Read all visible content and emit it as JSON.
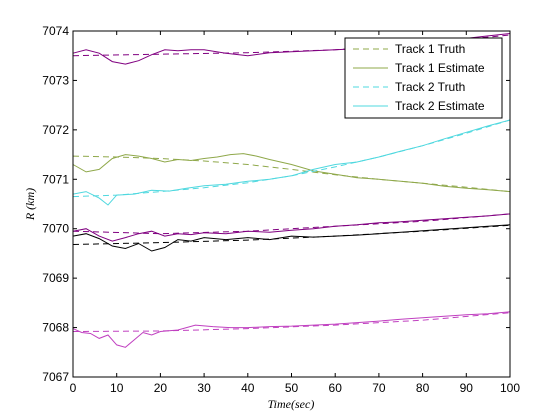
{
  "chart_data": {
    "type": "line",
    "title": "",
    "xlabel": "Time(sec)",
    "ylabel": "R (km)",
    "xlim": [
      0,
      100
    ],
    "ylim": [
      7067,
      7074
    ],
    "xticks": [
      0,
      10,
      20,
      30,
      40,
      50,
      60,
      70,
      80,
      90,
      100
    ],
    "yticks": [
      7067,
      7068,
      7069,
      7070,
      7071,
      7072,
      7073,
      7074
    ],
    "grid": false,
    "legend_position": "top-right",
    "legend": [
      {
        "label": "Track 1 Truth",
        "color": "#8fa84a",
        "dash": true
      },
      {
        "label": "Track 1 Estimate",
        "color": "#8fa84a",
        "dash": false
      },
      {
        "label": "Track 2 Truth",
        "color": "#4fd8df",
        "dash": true
      },
      {
        "label": "Track 2 Estimate",
        "color": "#4fd8df",
        "dash": false
      }
    ],
    "series": [
      {
        "name": "Track 1 Truth",
        "color": "#8fa84a",
        "dash": true,
        "x": [
          0,
          10,
          20,
          30,
          40,
          50,
          60,
          70,
          80,
          90,
          100
        ],
        "y": [
          7071.47,
          7071.45,
          7071.42,
          7071.37,
          7071.3,
          7071.2,
          7071.09,
          7071.0,
          7070.92,
          7070.84,
          7070.75
        ]
      },
      {
        "name": "Track 1 Estimate",
        "color": "#8fa84a",
        "dash": false,
        "x": [
          0,
          3,
          6,
          9,
          12,
          15,
          18,
          21,
          24,
          27,
          30,
          33,
          36,
          39,
          42,
          45,
          50,
          55,
          60,
          65,
          70,
          75,
          80,
          85,
          90,
          95,
          100
        ],
        "y": [
          7071.3,
          7071.15,
          7071.2,
          7071.42,
          7071.5,
          7071.47,
          7071.42,
          7071.35,
          7071.4,
          7071.38,
          7071.42,
          7071.45,
          7071.5,
          7071.52,
          7071.47,
          7071.4,
          7071.3,
          7071.17,
          7071.1,
          7071.03,
          7071.0,
          7070.96,
          7070.92,
          7070.86,
          7070.82,
          7070.79,
          7070.75
        ]
      },
      {
        "name": "Track 2 Truth",
        "color": "#4fd8df",
        "dash": true,
        "x": [
          0,
          10,
          20,
          30,
          40,
          50,
          60,
          70,
          80,
          90,
          100
        ],
        "y": [
          7070.65,
          7070.68,
          7070.75,
          7070.83,
          7070.93,
          7071.07,
          7071.25,
          7071.45,
          7071.68,
          7071.93,
          7072.2
        ]
      },
      {
        "name": "Track 2 Estimate",
        "color": "#4fd8df",
        "dash": false,
        "x": [
          0,
          3,
          6,
          8,
          10,
          14,
          18,
          22,
          26,
          30,
          35,
          40,
          45,
          50,
          55,
          60,
          65,
          70,
          75,
          80,
          85,
          90,
          95,
          100
        ],
        "y": [
          7070.7,
          7070.75,
          7070.62,
          7070.48,
          7070.68,
          7070.7,
          7070.78,
          7070.76,
          7070.82,
          7070.87,
          7070.9,
          7070.96,
          7071.0,
          7071.07,
          7071.2,
          7071.3,
          7071.35,
          7071.45,
          7071.57,
          7071.68,
          7071.82,
          7071.95,
          7072.08,
          7072.2
        ]
      },
      {
        "color": "#800080",
        "dash": true,
        "x": [
          0,
          20,
          40,
          60,
          80,
          100
        ],
        "y": [
          7073.5,
          7073.53,
          7073.56,
          7073.62,
          7073.75,
          7073.92
        ]
      },
      {
        "color": "#800080",
        "dash": false,
        "x": [
          0,
          3,
          6,
          9,
          12,
          15,
          18,
          21,
          24,
          27,
          30,
          35,
          40,
          45,
          50,
          55,
          60,
          65,
          70,
          75,
          80,
          85,
          90,
          95,
          100
        ],
        "y": [
          7073.55,
          7073.62,
          7073.55,
          7073.38,
          7073.33,
          7073.4,
          7073.52,
          7073.62,
          7073.6,
          7073.62,
          7073.62,
          7073.55,
          7073.5,
          7073.56,
          7073.58,
          7073.6,
          7073.62,
          7073.64,
          7073.7,
          7073.72,
          7073.76,
          7073.8,
          7073.85,
          7073.9,
          7073.95
        ]
      },
      {
        "color": "#800080",
        "dash": true,
        "x": [
          0,
          20,
          40,
          60,
          80,
          100
        ],
        "y": [
          7069.95,
          7069.9,
          7069.95,
          7070.05,
          7070.15,
          7070.3
        ]
      },
      {
        "color": "#800080",
        "dash": false,
        "x": [
          0,
          3,
          6,
          9,
          12,
          15,
          18,
          21,
          24,
          27,
          30,
          35,
          40,
          45,
          50,
          55,
          60,
          65,
          70,
          75,
          80,
          85,
          90,
          95,
          100
        ],
        "y": [
          7069.95,
          7070.0,
          7069.85,
          7069.75,
          7069.82,
          7069.9,
          7069.95,
          7069.85,
          7069.9,
          7069.88,
          7069.92,
          7069.9,
          7069.95,
          7069.93,
          7069.97,
          7070.0,
          7070.05,
          7070.08,
          7070.12,
          7070.14,
          7070.17,
          7070.2,
          7070.23,
          7070.26,
          7070.3
        ]
      },
      {
        "color": "#000000",
        "dash": true,
        "x": [
          0,
          20,
          40,
          60,
          80,
          100
        ],
        "y": [
          7069.68,
          7069.72,
          7069.77,
          7069.85,
          7069.95,
          7070.07
        ]
      },
      {
        "color": "#000000",
        "dash": false,
        "x": [
          0,
          3,
          6,
          9,
          12,
          15,
          18,
          21,
          24,
          27,
          30,
          35,
          40,
          45,
          50,
          55,
          60,
          65,
          70,
          75,
          80,
          85,
          90,
          95,
          100
        ],
        "y": [
          7069.85,
          7069.9,
          7069.8,
          7069.65,
          7069.6,
          7069.7,
          7069.55,
          7069.62,
          7069.78,
          7069.75,
          7069.82,
          7069.78,
          7069.82,
          7069.78,
          7069.85,
          7069.83,
          7069.85,
          7069.87,
          7069.9,
          7069.93,
          7069.96,
          7069.99,
          7070.02,
          7070.05,
          7070.08
        ]
      },
      {
        "color": "#c040c0",
        "dash": true,
        "x": [
          0,
          20,
          40,
          60,
          80,
          100
        ],
        "y": [
          7067.92,
          7067.93,
          7067.98,
          7068.05,
          7068.15,
          7068.3
        ]
      },
      {
        "color": "#c040c0",
        "dash": false,
        "x": [
          0,
          2,
          4,
          6,
          8,
          10,
          12,
          14,
          16,
          18,
          20,
          24,
          28,
          32,
          36,
          40,
          45,
          50,
          55,
          60,
          65,
          70,
          75,
          80,
          85,
          90,
          95,
          100
        ],
        "y": [
          7067.98,
          7067.9,
          7067.88,
          7067.78,
          7067.85,
          7067.65,
          7067.6,
          7067.75,
          7067.9,
          7067.85,
          7067.92,
          7067.95,
          7068.05,
          7068.02,
          7068.0,
          7068.0,
          7068.02,
          7068.03,
          7068.05,
          7068.07,
          7068.1,
          7068.13,
          7068.17,
          7068.2,
          7068.23,
          7068.26,
          7068.28,
          7068.32
        ]
      }
    ]
  }
}
